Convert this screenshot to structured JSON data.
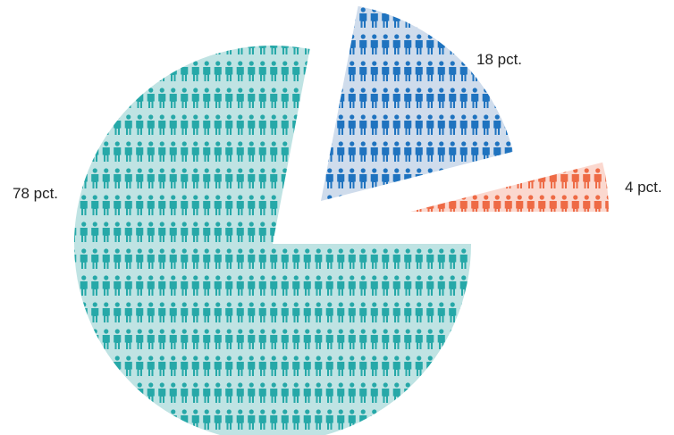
{
  "chart_data": {
    "type": "pie",
    "title": "",
    "slices": [
      {
        "label": "78 pct.",
        "value": 78,
        "color": "#26a8a8",
        "background": "#bfe3e3"
      },
      {
        "label": "18 pct.",
        "value": 18,
        "color": "#1f73bf",
        "background": "#cfdcec"
      },
      {
        "label": "4 pct.",
        "value": 4,
        "color": "#ee6a45",
        "background": "#fbd8cf"
      }
    ],
    "fill_pattern": "person-icon",
    "exploded": true
  }
}
